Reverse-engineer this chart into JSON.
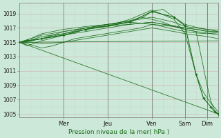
{
  "background_color": "#cce8d8",
  "grid_color_h": "#d4b8b8",
  "grid_color_v": "#c8d8c8",
  "line_color": "#1a6b1a",
  "xlabel": "Pression niveau de la mer( hPa )",
  "ylim": [
    1004.5,
    1020.5
  ],
  "yticks": [
    1005,
    1007,
    1009,
    1011,
    1013,
    1015,
    1017,
    1019
  ],
  "day_labels": [
    "Mer",
    "Jeu",
    "Ven",
    "Sam",
    "Dim"
  ],
  "day_positions": [
    24,
    48,
    72,
    90,
    102
  ],
  "xlim": [
    0,
    108
  ],
  "total_hours": 108,
  "lines": [
    [
      [
        0,
        108
      ],
      [
        1015.0,
        1015.2
      ]
    ],
    [
      [
        0,
        4,
        12,
        24,
        36,
        48,
        60,
        72,
        84,
        90,
        96,
        100,
        104,
        108
      ],
      [
        1015.0,
        1015.2,
        1015.5,
        1016.0,
        1016.8,
        1017.3,
        1018.2,
        1019.5,
        1018.2,
        1016.2,
        1010.5,
        1008.0,
        1006.5,
        1005.3
      ]
    ],
    [
      [
        0,
        6,
        12,
        18,
        24,
        30,
        36,
        48,
        60,
        66,
        72,
        78,
        84,
        90,
        96,
        100,
        104,
        108
      ],
      [
        1015.0,
        1015.3,
        1015.8,
        1016.0,
        1016.2,
        1016.5,
        1016.8,
        1017.2,
        1017.9,
        1018.3,
        1019.3,
        1019.6,
        1018.5,
        1017.5,
        1017.1,
        1016.9,
        1016.7,
        1016.5
      ]
    ],
    [
      [
        0,
        6,
        12,
        24,
        36,
        48,
        60,
        72,
        84,
        90,
        96,
        102,
        108
      ],
      [
        1015.0,
        1015.0,
        1014.8,
        1015.0,
        1015.5,
        1016.0,
        1016.5,
        1017.0,
        1016.5,
        1016.2,
        1016.0,
        1015.8,
        1015.5
      ]
    ],
    [
      [
        0,
        6,
        12,
        24,
        36,
        48,
        60,
        72,
        78,
        84,
        90,
        96,
        102,
        108
      ],
      [
        1015.0,
        1015.5,
        1016.2,
        1016.8,
        1017.2,
        1017.5,
        1017.8,
        1017.5,
        1017.2,
        1016.8,
        1016.5,
        1016.3,
        1016.2,
        1016.3
      ]
    ],
    [
      [
        0,
        6,
        12,
        18,
        24,
        36,
        48,
        60,
        72,
        84,
        90,
        96,
        102,
        108
      ],
      [
        1015.0,
        1015.2,
        1015.5,
        1016.0,
        1016.5,
        1017.0,
        1017.3,
        1017.5,
        1017.8,
        1017.2,
        1016.8,
        1016.5,
        1016.3,
        1016.0
      ]
    ],
    [
      [
        0,
        4,
        12,
        24,
        36,
        48,
        60,
        72,
        84,
        90,
        96,
        100,
        104,
        108
      ],
      [
        1015.0,
        1014.5,
        1015.2,
        1016.0,
        1016.5,
        1017.0,
        1017.5,
        1017.8,
        1017.3,
        1017.0,
        1016.8,
        1016.7,
        1016.5,
        1016.5
      ]
    ],
    [
      [
        0,
        6,
        12,
        24,
        36,
        48,
        60,
        72,
        84,
        90,
        96,
        102,
        108
      ],
      [
        1015.0,
        1015.5,
        1016.0,
        1016.5,
        1017.0,
        1017.5,
        1018.0,
        1018.5,
        1017.8,
        1017.2,
        1017.0,
        1016.8,
        1016.7
      ]
    ],
    [
      [
        0,
        4,
        12,
        18,
        24,
        30,
        42,
        54,
        66,
        72,
        84,
        96,
        102,
        106,
        108
      ],
      [
        1015.0,
        1014.8,
        1014.2,
        1014.5,
        1015.0,
        1015.5,
        1016.0,
        1016.5,
        1017.0,
        1017.5,
        1017.2,
        1016.8,
        1016.5,
        1016.4,
        1016.5
      ]
    ],
    [
      [
        0,
        108
      ],
      [
        1015.0,
        1005.0
      ]
    ],
    [
      [
        0,
        6,
        12,
        24,
        36,
        48,
        60,
        66,
        72,
        78,
        84,
        90,
        96,
        102,
        104,
        106,
        108
      ],
      [
        1015.0,
        1015.2,
        1015.5,
        1016.2,
        1017.0,
        1017.5,
        1018.0,
        1018.5,
        1018.2,
        1017.8,
        1017.2,
        1016.8,
        1016.5,
        1009.0,
        1006.8,
        1005.5,
        1005.0
      ]
    ]
  ],
  "marker_line": {
    "x": [
      0,
      4,
      12,
      24,
      36,
      48,
      60,
      72,
      84,
      90,
      96,
      100,
      104,
      106,
      108
    ],
    "y": [
      1015.0,
      1015.2,
      1015.5,
      1016.0,
      1016.8,
      1017.3,
      1017.8,
      1019.3,
      1018.5,
      1017.3,
      1010.5,
      1007.2,
      1006.0,
      1005.3,
      1005.0
    ]
  }
}
